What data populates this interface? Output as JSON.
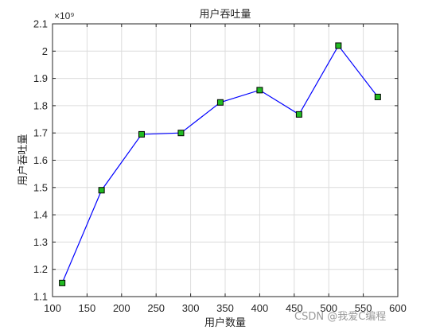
{
  "chart_data": {
    "type": "line",
    "title": "用户吞吐量",
    "xlabel": "用户数量",
    "ylabel": "用户吞吐量",
    "y_scale_note": "×10⁹",
    "xlim": [
      100,
      600
    ],
    "ylim": [
      1.1,
      2.1
    ],
    "xticks": [
      100,
      150,
      200,
      250,
      300,
      350,
      400,
      450,
      500,
      550,
      600
    ],
    "yticks": [
      1.1,
      1.2,
      1.3,
      1.4,
      1.5,
      1.6,
      1.7,
      1.8,
      1.9,
      2,
      2.1
    ],
    "xtick_labels": [
      "100",
      "150",
      "200",
      "250",
      "300",
      "350",
      "400",
      "450",
      "500",
      "550",
      "600"
    ],
    "ytick_labels": [
      "1.1",
      "1.2",
      "1.3",
      "1.4",
      "1.5",
      "1.6",
      "1.7",
      "1.8",
      "1.9",
      "2",
      "2.1"
    ],
    "grid": true,
    "series": [
      {
        "x": [
          114,
          171,
          229,
          286,
          343,
          400,
          457,
          514,
          571
        ],
        "y": [
          1.15,
          1.49,
          1.695,
          1.7,
          1.812,
          1.857,
          1.768,
          2.02,
          1.832
        ],
        "line_color": "#0000ff",
        "marker": "square",
        "marker_face_color": "#22bb22",
        "marker_edge_color": "#000000"
      }
    ]
  },
  "watermark": "CSDN @我爱C编程"
}
